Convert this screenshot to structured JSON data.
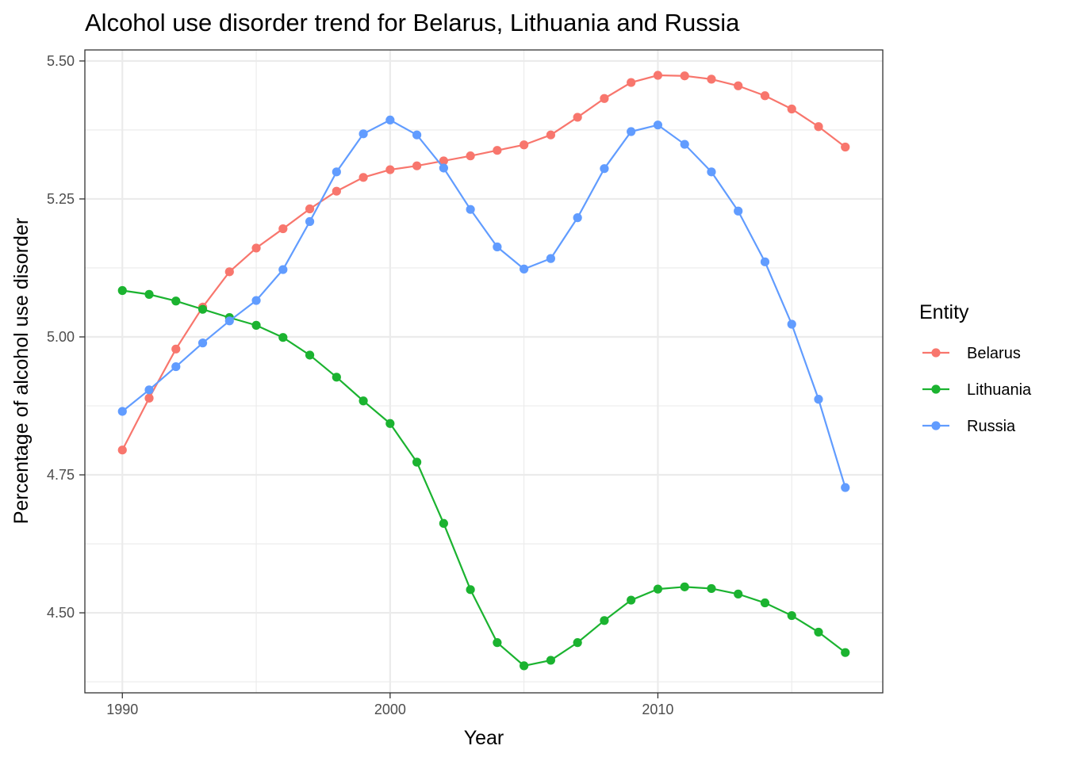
{
  "chart_data": {
    "type": "line",
    "title": "Alcohol use disorder trend for Belarus, Lithuania and Russia",
    "xlabel": "Year",
    "ylabel": "Percentage of alcohol use disorder",
    "xlim": [
      1988.6,
      2018.4
    ],
    "ylim": [
      4.355,
      5.52
    ],
    "x_ticks": [
      1990,
      2000,
      2010
    ],
    "x_tick_labels": [
      "1990",
      "2000",
      "2010"
    ],
    "x_minor_ticks": [
      1995,
      2005,
      2015
    ],
    "y_ticks": [
      4.5,
      4.75,
      5.0,
      5.25,
      5.5
    ],
    "y_tick_labels": [
      "4.50",
      "4.75",
      "5.00",
      "5.25",
      "5.50"
    ],
    "y_minor_ticks": [
      4.375,
      4.625,
      4.875,
      5.125,
      5.375
    ],
    "grid": true,
    "legend": {
      "title": "Entity",
      "position": "right"
    },
    "x": [
      1990,
      1991,
      1992,
      1993,
      1994,
      1995,
      1996,
      1997,
      1998,
      1999,
      2000,
      2001,
      2002,
      2003,
      2004,
      2005,
      2006,
      2007,
      2008,
      2009,
      2010,
      2011,
      2012,
      2013,
      2014,
      2015,
      2016,
      2017
    ],
    "series": [
      {
        "name": "Belarus",
        "color": "#f8766d",
        "values": [
          4.795,
          4.889,
          4.978,
          5.054,
          5.118,
          5.161,
          5.196,
          5.232,
          5.264,
          5.289,
          5.303,
          5.31,
          5.319,
          5.328,
          5.338,
          5.348,
          5.366,
          5.398,
          5.432,
          5.461,
          5.474,
          5.473,
          5.467,
          5.455,
          5.437,
          5.413,
          5.381,
          5.344
        ]
      },
      {
        "name": "Lithuania",
        "color": "#1bb330",
        "values": [
          5.084,
          5.077,
          5.065,
          5.05,
          5.035,
          5.021,
          4.999,
          4.967,
          4.927,
          4.884,
          4.843,
          4.773,
          4.662,
          4.542,
          4.446,
          4.404,
          4.414,
          4.446,
          4.486,
          4.523,
          4.543,
          4.547,
          4.544,
          4.534,
          4.518,
          4.495,
          4.465,
          4.428
        ]
      },
      {
        "name": "Russia",
        "color": "#619cff",
        "values": [
          4.865,
          4.904,
          4.946,
          4.989,
          5.029,
          5.066,
          5.122,
          5.209,
          5.299,
          5.368,
          5.393,
          5.366,
          5.306,
          5.231,
          5.163,
          5.123,
          5.142,
          5.216,
          5.305,
          5.372,
          5.384,
          5.349,
          5.299,
          5.228,
          5.136,
          5.023,
          4.887,
          4.727
        ]
      }
    ]
  }
}
